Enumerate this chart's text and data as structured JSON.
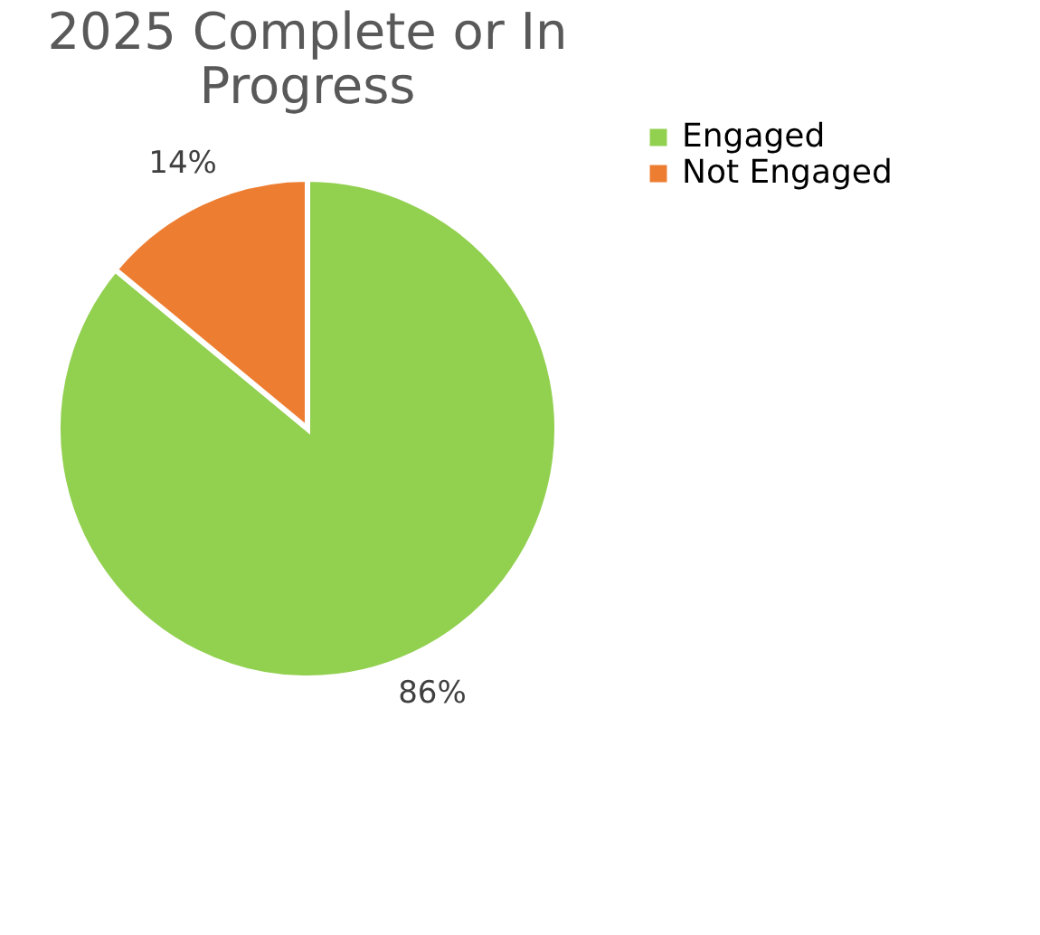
{
  "chart_data": {
    "type": "pie",
    "title": "2025 Complete or In Progress",
    "categories": [
      "Engaged",
      "Not Engaged"
    ],
    "values": [
      86,
      14
    ],
    "colors": [
      "#92d050",
      "#ed7d31"
    ],
    "value_labels": [
      "86%",
      "14%"
    ],
    "legend": "right"
  }
}
